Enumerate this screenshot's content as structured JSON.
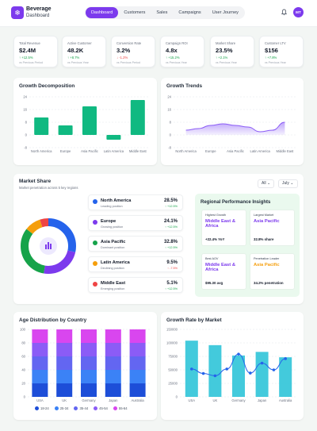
{
  "app": {
    "brand_title": "Beverage",
    "brand_subtitle": "Dashboard",
    "logo_icon": "snowflake-icon",
    "avatar_initials": "MT"
  },
  "nav": {
    "tabs": [
      "Dashboard",
      "Customers",
      "Sales",
      "Campaigns",
      "User Journey"
    ],
    "active": "Dashboard"
  },
  "kpis": [
    {
      "label": "Total Revenue",
      "value": "$2.4M",
      "delta": "↑ +12.5%",
      "direction": "up",
      "note": "vs Previous Period"
    },
    {
      "label": "Active Customer",
      "value": "48.2K",
      "delta": "↑ +8.7%",
      "direction": "up",
      "note": "vs Previous Year"
    },
    {
      "label": "Conversion Rate",
      "value": "3.2%",
      "delta": "↓ -1.2%",
      "direction": "down",
      "note": "vs Previous Period"
    },
    {
      "label": "Campaign ROI",
      "value": "4.8x",
      "delta": "↑ +15.2%",
      "direction": "up",
      "note": "vs Previous Year"
    },
    {
      "label": "Market Share",
      "value": "23.5%",
      "delta": "↑ +2.1%",
      "direction": "up",
      "note": "vs Previous Year"
    },
    {
      "label": "Customer LTV",
      "value": "$156",
      "delta": "↑ +7.8%",
      "direction": "up",
      "note": "vs Previous Year"
    }
  ],
  "growth_decomposition": {
    "title": "Growth Decomposition"
  },
  "growth_trends": {
    "title": "Growth Trends"
  },
  "market_share": {
    "title": "Market Share",
    "subtitle": "Market penetration across 5 key regions",
    "filter_region": "All",
    "filter_month": "July",
    "items": [
      {
        "name": "North America",
        "status": "Leading position",
        "pct": "28.5%",
        "delta": "↑ +12.5%",
        "direction": "up",
        "color": "#2563eb"
      },
      {
        "name": "Europe",
        "status": "Growing position",
        "pct": "24.1%",
        "delta": "↑ +12.5%",
        "direction": "up",
        "color": "#7c3aed"
      },
      {
        "name": "Asia Pacific",
        "status": "Dominant position",
        "pct": "32.8%",
        "delta": "↑ +12.5%",
        "direction": "up",
        "color": "#16a34a"
      },
      {
        "name": "Latin America",
        "status": "Declining position",
        "pct": "9.5%",
        "delta": "↑ -7.5%",
        "direction": "down",
        "color": "#f59e0b"
      },
      {
        "name": "Middle East",
        "status": "Emerging position",
        "pct": "5.1%",
        "delta": "↑ +12.5%",
        "direction": "up",
        "color": "#ef4444"
      }
    ]
  },
  "insights": {
    "title": "Regional Performance Insights",
    "cards": [
      {
        "label": "Highest Growth",
        "value": "Middle East & Africa",
        "color": "#7c3aed",
        "stat": "+22.4% YoY"
      },
      {
        "label": "Largest Market",
        "value": "Asia Pacific",
        "color": "#7c3aed",
        "stat": "32.8% share"
      },
      {
        "label": "Best AOV",
        "value": "Middle East & Africa",
        "color": "#7c3aed",
        "stat": "$95.30 avg"
      },
      {
        "label": "Penetration Leader",
        "value": "Asia Pacific",
        "color": "#f59e0b",
        "stat": "34.2% penetration"
      }
    ]
  },
  "age_distribution": {
    "title": "Age Distribution by Country"
  },
  "growth_rate": {
    "title": "Growth Rate by Market"
  },
  "chart_data": [
    {
      "type": "bar",
      "title": "Growth Decomposition",
      "categories": [
        "North America",
        "Europe",
        "Asia Pacific",
        "Latin America",
        "Middle East"
      ],
      "values": [
        11,
        6,
        18,
        -3,
        22
      ],
      "ylim": [
        -8,
        24
      ],
      "yticks": [
        "24",
        "16",
        "8",
        "0",
        "-8"
      ],
      "color": "#10b981",
      "grid": true
    },
    {
      "type": "area",
      "title": "Growth Trends",
      "categories": [
        "North America",
        "Europe",
        "Asia Pacific",
        "Latin America",
        "Middle East"
      ],
      "x": [
        0,
        0.5,
        1,
        1.5,
        2,
        2.5,
        3,
        3.5,
        4
      ],
      "values": [
        3,
        4,
        6,
        7,
        6,
        5,
        2,
        3,
        8
      ],
      "ylim": [
        -8,
        24
      ],
      "yticks": [
        "24",
        "16",
        "8",
        "0",
        "-8"
      ],
      "color": "#8b5cf6",
      "grid": true
    },
    {
      "type": "pie",
      "title": "Market Share",
      "categories": [
        "North America",
        "Europe",
        "Asia Pacific",
        "Latin America",
        "Middle East"
      ],
      "values": [
        28.5,
        24.1,
        32.8,
        9.5,
        5.1
      ],
      "colors": [
        "#2563eb",
        "#7c3aed",
        "#16a34a",
        "#f59e0b",
        "#ef4444"
      ]
    },
    {
      "type": "bar",
      "stacked": true,
      "title": "Age Distribution by Country",
      "categories": [
        "USA",
        "UK",
        "Germany",
        "Japan",
        "Australia"
      ],
      "series": [
        {
          "name": "18-24",
          "values": [
            20,
            20,
            20,
            20,
            20
          ],
          "color": "#1d4ed8"
        },
        {
          "name": "25-34",
          "values": [
            20,
            20,
            20,
            20,
            20
          ],
          "color": "#3b82f6"
        },
        {
          "name": "35-44",
          "values": [
            20,
            20,
            20,
            20,
            20
          ],
          "color": "#6366f1"
        },
        {
          "name": "45-54",
          "values": [
            20,
            20,
            20,
            20,
            20
          ],
          "color": "#8b5cf6"
        },
        {
          "name": "55-64",
          "values": [
            20,
            20,
            20,
            20,
            20
          ],
          "color": "#d946ef"
        }
      ],
      "ylim": [
        0,
        100
      ],
      "yticks": [
        "100",
        "80",
        "60",
        "40",
        "20",
        "0"
      ],
      "legend": "bottom"
    },
    {
      "type": "bar",
      "title": "Growth Rate by Market",
      "categories": [
        "USA",
        "UK",
        "Germany",
        "Japan",
        "Australia"
      ],
      "values": [
        125000,
        115000,
        92000,
        100000,
        88000
      ],
      "ylim": [
        0,
        150000
      ],
      "yticks": [
        "150000",
        "100000",
        "75000",
        "50000",
        "25000",
        "0"
      ],
      "color": "#22c1d6",
      "line": {
        "x": [
          0,
          0.5,
          1,
          1.5,
          2,
          2.5,
          3,
          3.5,
          4
        ],
        "values": [
          62000,
          52000,
          47000,
          62000,
          95000,
          53000,
          75000,
          60000,
          85000
        ],
        "color": "#2563eb"
      }
    }
  ]
}
